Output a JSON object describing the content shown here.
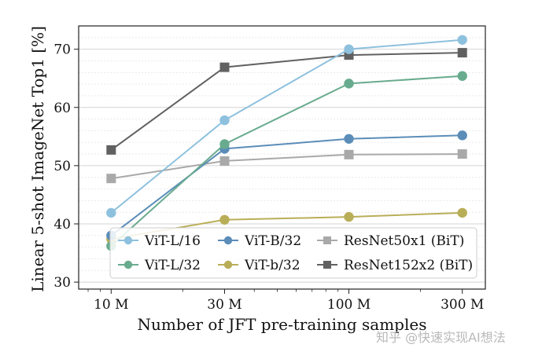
{
  "chart_data": {
    "type": "line",
    "xlabel": "Number of JFT pre-training samples",
    "ylabel": "Linear 5-shot ImageNet Top1 [%]",
    "x_scale": "log",
    "x": [
      10,
      30,
      100,
      300
    ],
    "x_tick_labels": [
      "10 M",
      "30 M",
      "100 M",
      "300 M"
    ],
    "ylim": [
      28.8,
      74.0
    ],
    "y_ticks": [
      30,
      40,
      50,
      60,
      70
    ],
    "grid": true,
    "legend_position": "lower-left",
    "series": [
      {
        "name": "ViT-L/16",
        "color": "#8ec1de",
        "marker": "circle",
        "values": [
          41.9,
          57.8,
          70.0,
          71.6
        ]
      },
      {
        "name": "ViT-L/32",
        "color": "#69ab8e",
        "marker": "circle",
        "values": [
          36.2,
          53.7,
          64.1,
          65.4
        ]
      },
      {
        "name": "ViT-B/32",
        "color": "#5b8db8",
        "marker": "circle",
        "values": [
          38.0,
          52.9,
          54.6,
          55.2
        ]
      },
      {
        "name": "ViT-b/32",
        "color": "#b9ae58",
        "marker": "circle",
        "values": [
          37.4,
          40.7,
          41.2,
          41.9
        ]
      },
      {
        "name": "ResNet50x1 (BiT)",
        "color": "#a9a9a9",
        "marker": "square",
        "values": [
          47.8,
          50.8,
          51.9,
          52.0
        ]
      },
      {
        "name": "ResNet152x2 (BiT)",
        "color": "#616161",
        "marker": "square",
        "values": [
          52.7,
          66.9,
          69.0,
          69.4
        ]
      }
    ]
  },
  "watermark": "知乎 @快速实现AI想法"
}
